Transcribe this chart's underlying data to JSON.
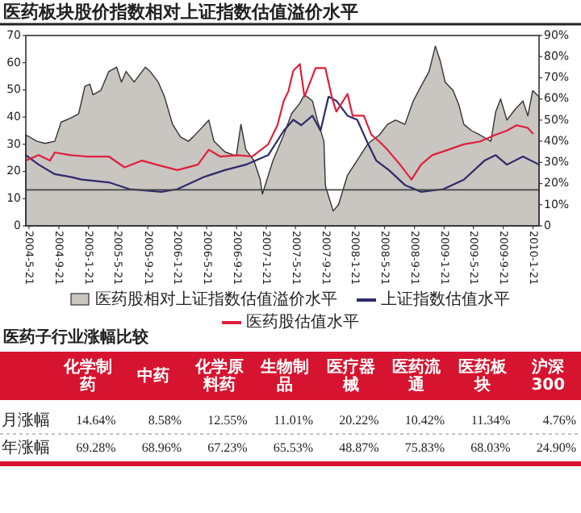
{
  "chart_data": [
    {
      "type": "line",
      "title": "医药板块股价指数相对上证指数估值溢价水平",
      "series": [
        {
          "name": "医药股相对上证指数估值溢价水平",
          "type": "area",
          "axis": "y2",
          "color": "#c9c5c0",
          "x": [
            "2004-05-08",
            "2004-06-23",
            "2004-07-26",
            "2004-09-04",
            "2004-09-30",
            "2004-11-08",
            "2004-12-11",
            "2005-01-06",
            "2005-01-26",
            "2005-02-08",
            "2005-03-12",
            "2005-04-14",
            "2005-05-16",
            "2005-06-05",
            "2005-06-24",
            "2005-07-27",
            "2005-09-11",
            "2005-10-01",
            "2005-11-03",
            "2005-11-29",
            "2006-01-01",
            "2006-02-03",
            "2006-03-07",
            "2006-03-26",
            "2006-04-28",
            "2006-05-30",
            "2006-06-20",
            "2006-08-04",
            "2006-09-20",
            "2006-10-09",
            "2006-10-29",
            "2006-12-01",
            "2006-12-27",
            "2007-01-05",
            "2007-02-18",
            "2007-04-03",
            "2007-05-05",
            "2007-06-08",
            "2007-06-27",
            "2007-07-30",
            "2007-08-19",
            "2007-09-15",
            "2007-09-21",
            "2007-10-23",
            "2007-11-14",
            "2007-12-21",
            "2008-01-30",
            "2008-03-15",
            "2008-04-30",
            "2008-06-02",
            "2008-07-05",
            "2008-08-13",
            "2008-09-16",
            "2008-10-18",
            "2008-11-20",
            "2008-12-16",
            "2009-01-05",
            "2009-01-25",
            "2009-02-27",
            "2009-03-23",
            "2009-04-12",
            "2009-05-14",
            "2009-06-17",
            "2009-08-01",
            "2009-08-21",
            "2009-09-10",
            "2009-10-06",
            "2009-11-08",
            "2009-12-11",
            "2009-12-31",
            "2010-01-20",
            "2010-02-15"
          ],
          "values": [
            43,
            40,
            39,
            40,
            49,
            51,
            53,
            66,
            67,
            62,
            64,
            73,
            75,
            68,
            73,
            68,
            75,
            73,
            68,
            61,
            48,
            42,
            40,
            42,
            46,
            50,
            40,
            35,
            33,
            48,
            36,
            31,
            22,
            15,
            31,
            43,
            53,
            58,
            62,
            59,
            50,
            40,
            19,
            7,
            10,
            24,
            31,
            39,
            43,
            48,
            50,
            48,
            59,
            66,
            73,
            85,
            78,
            68,
            64,
            57,
            48,
            45,
            43,
            40,
            54,
            60,
            50,
            55,
            59,
            52,
            64,
            61
          ]
        },
        {
          "name": "上证指数估值水平",
          "color": "#2e2a6b",
          "x": [
            "2004-05-08",
            "2004-06-30",
            "2004-09-04",
            "2004-11-08",
            "2004-12-24",
            "2005-04-14",
            "2005-07-08",
            "2005-11-16",
            "2006-01-21",
            "2006-05-11",
            "2006-08-04",
            "2006-10-29",
            "2007-01-29",
            "2007-04-03",
            "2007-05-12",
            "2007-06-14",
            "2007-07-30",
            "2007-09-01",
            "2007-10-04",
            "2007-11-05",
            "2007-12-21",
            "2008-01-30",
            "2008-03-15",
            "2008-04-17",
            "2008-06-08",
            "2008-08-13",
            "2008-10-18",
            "2009-01-18",
            "2009-04-12",
            "2009-07-06",
            "2009-08-21",
            "2009-10-06",
            "2009-12-11",
            "2010-02-15"
          ],
          "values": [
            26,
            22.5,
            19,
            18,
            17,
            16,
            13.5,
            12.5,
            13.5,
            18,
            20.5,
            22.5,
            26,
            35,
            39,
            37,
            40.5,
            35,
            47.5,
            46,
            40.5,
            39,
            30,
            24,
            20.5,
            15,
            12.5,
            13.5,
            17,
            24,
            26,
            22.5,
            25.5,
            22.5
          ]
        },
        {
          "name": "医药股估值水平",
          "color": "#e0203c",
          "x": [
            "2004-05-08",
            "2004-06-30",
            "2004-08-15",
            "2004-09-04",
            "2004-11-08",
            "2005-01-13",
            "2005-04-14",
            "2005-06-18",
            "2005-08-29",
            "2005-10-27",
            "2006-01-21",
            "2006-04-15",
            "2006-05-30",
            "2006-07-15",
            "2006-09-26",
            "2006-11-24",
            "2007-01-29",
            "2007-03-08",
            "2007-04-03",
            "2007-04-22",
            "2007-05-12",
            "2007-06-08",
            "2007-06-27",
            "2007-08-12",
            "2007-09-21",
            "2007-10-17",
            "2007-11-05",
            "2007-12-21",
            "2008-01-11",
            "2008-02-26",
            "2008-03-28",
            "2008-04-30",
            "2008-06-02",
            "2008-07-24",
            "2008-09-09",
            "2008-10-18",
            "2008-12-03",
            "2009-02-07",
            "2009-04-12",
            "2009-06-17",
            "2009-08-21",
            "2009-10-06",
            "2009-11-15",
            "2009-12-31",
            "2010-01-20"
          ],
          "values": [
            24,
            26,
            24,
            27,
            26,
            25.5,
            25.5,
            21.5,
            24,
            22.5,
            20.5,
            22.5,
            28,
            25.5,
            26,
            25.5,
            30,
            37,
            46,
            49.5,
            57,
            59.5,
            47.5,
            58,
            58,
            47.5,
            42,
            48.5,
            40.5,
            40.5,
            33.5,
            31,
            28,
            22.5,
            17,
            22.5,
            26,
            28,
            30,
            31,
            33.5,
            35,
            37,
            36,
            34
          ]
        }
      ],
      "xlim": [
        "2004-05-08",
        "2010-02-15"
      ],
      "xticks": [
        {
          "value": "2004-05-21",
          "label": "2004-5-21"
        },
        {
          "value": "2004-09-21",
          "label": "2004-9-21"
        },
        {
          "value": "2005-01-21",
          "label": "2005-1-21"
        },
        {
          "value": "2005-05-21",
          "label": "2005-5-21"
        },
        {
          "value": "2005-09-21",
          "label": "2005-9-21"
        },
        {
          "value": "2006-01-21",
          "label": "2006-1-21"
        },
        {
          "value": "2006-05-21",
          "label": "2006-5-21"
        },
        {
          "value": "2006-09-21",
          "label": "2006-9-21"
        },
        {
          "value": "2007-01-21",
          "label": "2007-1-21"
        },
        {
          "value": "2007-05-21",
          "label": "2007-5-21"
        },
        {
          "value": "2007-09-21",
          "label": "2007-9-21"
        },
        {
          "value": "2008-01-21",
          "label": "2008-1-21"
        },
        {
          "value": "2008-05-21",
          "label": "2008-5-21"
        },
        {
          "value": "2008-09-21",
          "label": "2008-9-21"
        },
        {
          "value": "2009-01-21",
          "label": "2009-1-21"
        },
        {
          "value": "2009-05-21",
          "label": "2009-5-21"
        },
        {
          "value": "2009-09-21",
          "label": "2009-9-21"
        },
        {
          "value": "2010-01-21",
          "label": "2010-1-21"
        }
      ],
      "ylim": [
        0,
        70
      ],
      "yticks": [
        0,
        10,
        20,
        30,
        40,
        50,
        60,
        70
      ],
      "y2lim": [
        0,
        90
      ],
      "y2ticks": [
        0,
        {
          "value": 10,
          "label": "10%"
        },
        {
          "value": 20,
          "label": "20%"
        },
        {
          "value": 30,
          "label": "30%"
        },
        {
          "value": 40,
          "label": "40%"
        },
        {
          "value": 50,
          "label": "50%"
        },
        {
          "value": 60,
          "label": "60%"
        },
        {
          "value": 70,
          "label": "70%"
        },
        {
          "value": 80,
          "label": "80%"
        },
        {
          "value": 90,
          "label": "90%"
        }
      ],
      "ref_lines": [
        {
          "axis": "y2",
          "value": 17,
          "color": "#444444"
        }
      ],
      "legend": "bottom"
    },
    {
      "type": "other",
      "title": "医药子行业涨幅比较",
      "categories": [
        "化学制药",
        "中药",
        "化学原料药",
        "生物制品",
        "医疗器械",
        "医药流通",
        "医药板块",
        "沪深300"
      ],
      "series": [
        {
          "name": "月涨幅",
          "values": [
            14.64,
            8.58,
            12.55,
            11.01,
            20.22,
            10.42,
            11.34,
            4.76
          ],
          "value_labels": [
            "14.64%",
            "8.58%",
            "12.55%",
            "11.01%",
            "20.22%",
            "10.42%",
            "11.34%",
            "4.76%"
          ]
        },
        {
          "name": "年涨幅",
          "values": [
            69.28,
            68.96,
            67.23,
            65.53,
            48.87,
            75.83,
            68.03,
            24.9
          ],
          "value_labels": [
            "69.28%",
            "68.96%",
            "67.23%",
            "65.53%",
            "48.87%",
            "75.83%",
            "68.03%",
            "24.90%"
          ]
        }
      ]
    }
  ]
}
